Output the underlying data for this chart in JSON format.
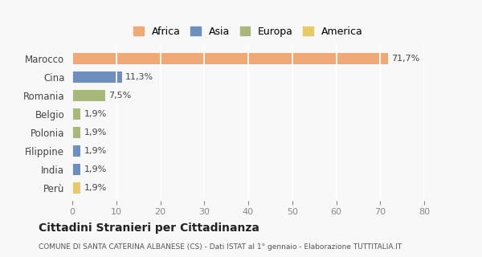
{
  "countries": [
    "Marocco",
    "Cina",
    "Romania",
    "Belgio",
    "Polonia",
    "Filippine",
    "India",
    "Perù"
  ],
  "values": [
    71.7,
    11.3,
    7.5,
    1.9,
    1.9,
    1.9,
    1.9,
    1.9
  ],
  "labels": [
    "71,7%",
    "11,3%",
    "7,5%",
    "1,9%",
    "1,9%",
    "1,9%",
    "1,9%",
    "1,9%"
  ],
  "colors": [
    "#f0a875",
    "#6e8fbd",
    "#a8b87a",
    "#a8b87a",
    "#a8b87a",
    "#6e8fbd",
    "#6e8fbd",
    "#e8c96a"
  ],
  "continent": [
    "Africa",
    "Asia",
    "Europa",
    "Europa",
    "Europa",
    "Asia",
    "Asia",
    "America"
  ],
  "legend_labels": [
    "Africa",
    "Asia",
    "Europa",
    "America"
  ],
  "legend_colors": [
    "#f0a875",
    "#6e8fbd",
    "#a8b87a",
    "#e8c96a"
  ],
  "title": "Cittadini Stranieri per Cittadinanza",
  "subtitle": "COMUNE DI SANTA CATERINA ALBANESE (CS) - Dati ISTAT al 1° gennaio - Elaborazione TUTTITALIA.IT",
  "xlim": [
    0,
    80
  ],
  "xticks": [
    0,
    10,
    20,
    30,
    40,
    50,
    60,
    70,
    80
  ],
  "background_color": "#f8f8f8",
  "grid_color": "#ffffff"
}
